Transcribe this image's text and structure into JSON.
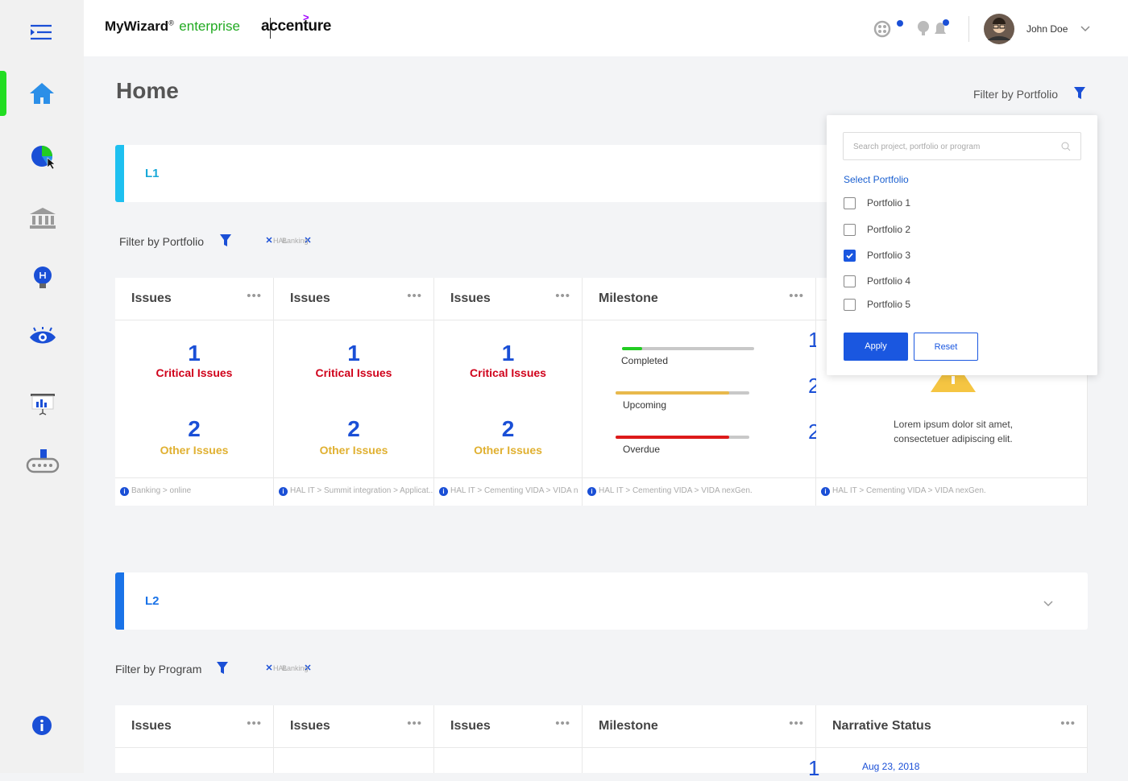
{
  "header": {
    "brand": "MyWizard",
    "registered": "®",
    "product": "enterprise",
    "company": "accenture",
    "user": "John Doe"
  },
  "page": {
    "title": "Home",
    "filter_label": "Filter by Portfolio"
  },
  "sections": [
    {
      "title": "L1",
      "filter_label": "Filter by Portfolio",
      "chips": [
        "HAL",
        "Banking"
      ],
      "cards": [
        {
          "type": "issues",
          "title": "Issues",
          "critical": 1,
          "critical_label": "Critical Issues",
          "other": 2,
          "other_label": "Other Issues",
          "footer": "Banking > online"
        },
        {
          "type": "issues",
          "title": "Issues",
          "critical": 1,
          "critical_label": "Critical Issues",
          "other": 2,
          "other_label": "Other Issues",
          "footer": "HAL IT > Summit integration > Applicat..."
        },
        {
          "type": "issues",
          "title": "Issues",
          "critical": 1,
          "critical_label": "Critical Issues",
          "other": 2,
          "other_label": "Other Issues",
          "footer": "HAL IT > Cementing VIDA > VIDA n"
        },
        {
          "type": "milestone",
          "title": "Milestone",
          "items": [
            {
              "label": "Completed",
              "progress": 15,
              "color": "#22cc22",
              "count": 1
            },
            {
              "label": "Upcoming",
              "progress": 85,
              "color": "#e8b94c",
              "count": 2
            },
            {
              "label": "Overdue",
              "progress": 85,
              "color": "#dd1a1a",
              "count": 2
            }
          ],
          "footer": "HAL IT > Cementing VIDA > VIDA nexGen."
        },
        {
          "type": "narrative",
          "text": "Lorem ipsum dolor sit amet, consectetuer adipiscing elit.",
          "footer": "HAL IT > Cementing VIDA > VIDA nexGen."
        }
      ]
    },
    {
      "title": "L2",
      "filter_label": "Filter by Program",
      "chips": [
        "HAL",
        "Banking"
      ],
      "cards": [
        {
          "type": "issues",
          "title": "Issues"
        },
        {
          "type": "issues",
          "title": "Issues"
        },
        {
          "type": "issues",
          "title": "Issues"
        },
        {
          "type": "milestone",
          "title": "Milestone",
          "items": [
            {
              "count": 1
            }
          ]
        },
        {
          "type": "narrative",
          "title": "Narrative Status",
          "date": "Aug 23, 2018"
        }
      ]
    }
  ],
  "dropdown": {
    "search_placeholder": "Search project, portfolio or program",
    "heading": "Select Portfolio",
    "options": [
      {
        "label": "Portfolio 1",
        "checked": false
      },
      {
        "label": "Portfolio 2",
        "checked": false
      },
      {
        "label": "Portfolio 3",
        "checked": true
      },
      {
        "label": "Portfolio 4",
        "checked": false
      },
      {
        "label": "Portfolio 5",
        "checked": false
      }
    ],
    "apply": "Apply",
    "reset": "Reset"
  }
}
